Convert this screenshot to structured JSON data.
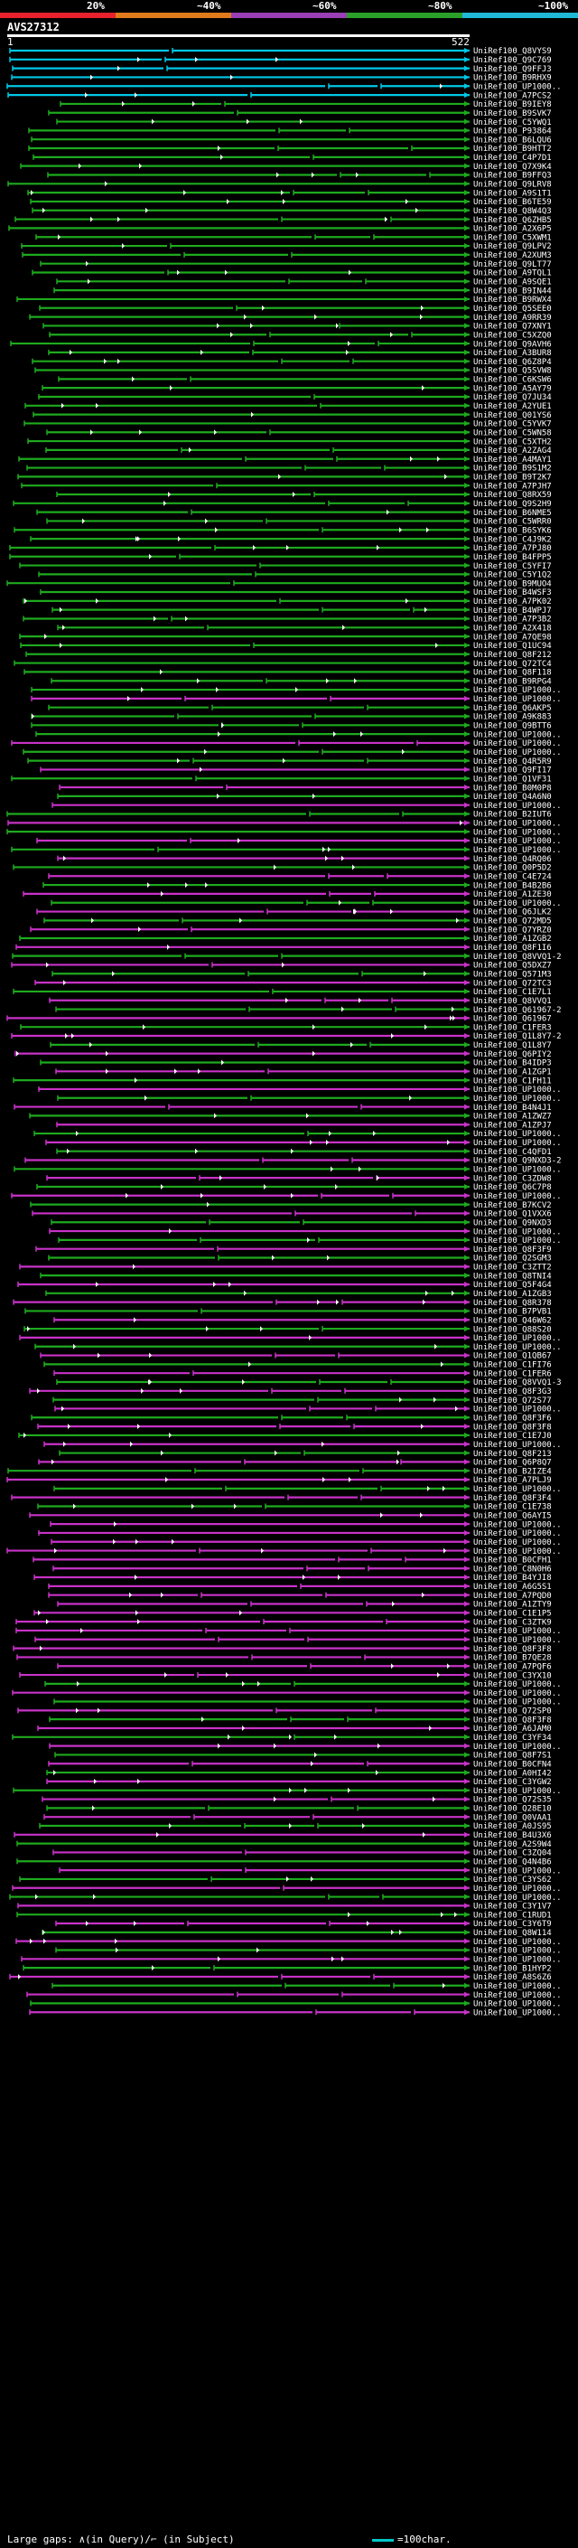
{
  "identity_scale": {
    "labels": [
      "20%",
      "~40%",
      "~60%",
      "~80%",
      "~100%"
    ],
    "colors": [
      "#e8212d",
      "#e07a1a",
      "#9a3fb5",
      "#2aa02a",
      "#1fb8d8"
    ]
  },
  "query": {
    "id": "AVS27312",
    "start": "1",
    "end": "522"
  },
  "hits": [
    {
      "id": "UniRef100_Q8VYS9",
      "color": "#00c8e6"
    },
    {
      "id": "UniRef100_Q9C769",
      "color": "#00c8e6"
    },
    {
      "id": "UniRef100_Q9FFJ3",
      "color": "#00c8e6"
    },
    {
      "id": "UniRef100_B9RHX9",
      "color": "#00c8e6"
    },
    {
      "id": "UniRef100_UP1000..",
      "color": "#00c8e6"
    },
    {
      "id": "UniRef100_A7PCS2",
      "color": "#00c8e6"
    },
    {
      "id": "UniRef100_B9IEY8",
      "color": "#1eaa1e"
    },
    {
      "id": "UniRef100_B9SVK7",
      "color": "#1eaa1e"
    },
    {
      "id": "UniRef100_C5YWQ1",
      "color": "#1eaa1e"
    },
    {
      "id": "UniRef100_P93864",
      "color": "#1eaa1e"
    },
    {
      "id": "UniRef100_B6LQU6",
      "color": "#1eaa1e"
    },
    {
      "id": "UniRef100_B9HTT2",
      "color": "#1eaa1e"
    },
    {
      "id": "UniRef100_C4P7D1",
      "color": "#1eaa1e"
    },
    {
      "id": "UniRef100_Q7X9K4",
      "color": "#1eaa1e"
    },
    {
      "id": "UniRef100_B9FFQ3",
      "color": "#1eaa1e"
    },
    {
      "id": "UniRef100_Q9LRV8",
      "color": "#1eaa1e"
    },
    {
      "id": "UniRef100_A9S1T1",
      "color": "#1eaa1e"
    },
    {
      "id": "UniRef100_B6TE59",
      "color": "#1eaa1e"
    },
    {
      "id": "UniRef100_Q8W4Q3",
      "color": "#1eaa1e"
    },
    {
      "id": "UniRef100_Q6ZHB5",
      "color": "#1eaa1e"
    },
    {
      "id": "UniRef100_A2X6P5",
      "color": "#1eaa1e"
    },
    {
      "id": "UniRef100_C5XWM1",
      "color": "#1eaa1e"
    },
    {
      "id": "UniRef100_Q9LPV2",
      "color": "#1eaa1e"
    },
    {
      "id": "UniRef100_A2XUM3",
      "color": "#1eaa1e"
    },
    {
      "id": "UniRef100_Q9LT77",
      "color": "#1eaa1e"
    },
    {
      "id": "UniRef100_A9TQL1",
      "color": "#1eaa1e"
    },
    {
      "id": "UniRef100_A9SQE1",
      "color": "#1eaa1e"
    },
    {
      "id": "UniRef100_B9IN44",
      "color": "#1eaa1e"
    },
    {
      "id": "UniRef100_B9RWX4",
      "color": "#1eaa1e"
    },
    {
      "id": "UniRef100_Q5SEE0",
      "color": "#1eaa1e"
    },
    {
      "id": "UniRef100_A9RR39",
      "color": "#1eaa1e"
    },
    {
      "id": "UniRef100_Q7XNY1",
      "color": "#1eaa1e"
    },
    {
      "id": "UniRef100_C5XZQ0",
      "color": "#1eaa1e"
    },
    {
      "id": "UniRef100_Q9AVH6",
      "color": "#1eaa1e"
    },
    {
      "id": "UniRef100_A3BUR8",
      "color": "#1eaa1e"
    },
    {
      "id": "UniRef100_Q6Z8P4",
      "color": "#1eaa1e"
    },
    {
      "id": "UniRef100_Q5SVW8",
      "color": "#1eaa1e"
    },
    {
      "id": "UniRef100_C6KSW6",
      "color": "#1eaa1e"
    },
    {
      "id": "UniRef100_A5AY79",
      "color": "#1eaa1e"
    },
    {
      "id": "UniRef100_Q7JU34",
      "color": "#1eaa1e"
    },
    {
      "id": "UniRef100_A2YUE1",
      "color": "#1eaa1e"
    },
    {
      "id": "UniRef100_Q01YS6",
      "color": "#1eaa1e"
    },
    {
      "id": "UniRef100_C5YVK7",
      "color": "#1eaa1e"
    },
    {
      "id": "UniRef100_C5WN58",
      "color": "#1eaa1e"
    },
    {
      "id": "UniRef100_C5XTH2",
      "color": "#1eaa1e"
    },
    {
      "id": "UniRef100_A2ZAG4",
      "color": "#1eaa1e"
    },
    {
      "id": "UniRef100_A4MAY1",
      "color": "#1eaa1e"
    },
    {
      "id": "UniRef100_B9S1M2",
      "color": "#1eaa1e"
    },
    {
      "id": "UniRef100_B9T2K7",
      "color": "#1eaa1e"
    },
    {
      "id": "UniRef100_A7PJH7",
      "color": "#1eaa1e"
    },
    {
      "id": "UniRef100_Q8RX59",
      "color": "#1eaa1e"
    },
    {
      "id": "UniRef100_Q9S2H9",
      "color": "#1eaa1e"
    },
    {
      "id": "UniRef100_B6NME5",
      "color": "#1eaa1e"
    },
    {
      "id": "UniRef100_C5WRR0",
      "color": "#1eaa1e"
    },
    {
      "id": "UniRef100_B6SYK6",
      "color": "#1eaa1e"
    },
    {
      "id": "UniRef100_C4J9K2",
      "color": "#1eaa1e"
    },
    {
      "id": "UniRef100_A7PJ80",
      "color": "#1eaa1e"
    },
    {
      "id": "UniRef100_B4FPP5",
      "color": "#1eaa1e"
    },
    {
      "id": "UniRef100_C5YFI7",
      "color": "#1eaa1e"
    },
    {
      "id": "UniRef100_C5Y1Q2",
      "color": "#1eaa1e"
    },
    {
      "id": "UniRef100_B9MUO4",
      "color": "#1eaa1e"
    },
    {
      "id": "UniRef100_B4WSF3",
      "color": "#1eaa1e"
    },
    {
      "id": "UniRef100_A7PK02",
      "color": "#1eaa1e"
    },
    {
      "id": "UniRef100_B4WPJ7",
      "color": "#1eaa1e"
    },
    {
      "id": "UniRef100_A7P3B2",
      "color": "#1eaa1e"
    },
    {
      "id": "UniRef100_A2X418",
      "color": "#1eaa1e"
    },
    {
      "id": "UniRef100_A7QE98",
      "color": "#1eaa1e"
    },
    {
      "id": "UniRef100_Q1UC94",
      "color": "#1eaa1e"
    },
    {
      "id": "UniRef100_Q8F212",
      "color": "#1eaa1e"
    },
    {
      "id": "UniRef100_Q72TC4",
      "color": "#1eaa1e"
    },
    {
      "id": "UniRef100_Q8F118",
      "color": "#1eaa1e"
    },
    {
      "id": "UniRef100_B9RPG4",
      "color": "#1eaa1e"
    },
    {
      "id": "UniRef100_UP1000..",
      "color": "#1eaa1e"
    },
    {
      "id": "UniRef100_UP1000..",
      "color": "#c832c8"
    },
    {
      "id": "UniRef100_Q6AKP5",
      "color": "#1eaa1e"
    },
    {
      "id": "UniRef100_A9K883",
      "color": "#1eaa1e"
    },
    {
      "id": "UniRef100_Q9BTT6",
      "color": "#1eaa1e"
    },
    {
      "id": "UniRef100_UP1000..",
      "color": "#1eaa1e"
    },
    {
      "id": "UniRef100_UP1000..",
      "color": "#c832c8"
    },
    {
      "id": "UniRef100_UP1000..",
      "color": "#1eaa1e"
    },
    {
      "id": "UniRef100_Q4R5R9",
      "color": "#1eaa1e"
    },
    {
      "id": "UniRef100_Q9FI17",
      "color": "#c832c8"
    },
    {
      "id": "UniRef100_Q1VF31",
      "color": "#1eaa1e"
    },
    {
      "id": "UniRef100_B0M0P8",
      "color": "#c832c8"
    },
    {
      "id": "UniRef100_Q4A6N0",
      "color": "#1eaa1e"
    },
    {
      "id": "UniRef100_UP1000..",
      "color": "#c832c8"
    },
    {
      "id": "UniRef100_B2IUT6",
      "color": "#1eaa1e"
    },
    {
      "id": "UniRef100_UP1000..",
      "color": "#c832c8"
    },
    {
      "id": "UniRef100_UP1000..",
      "color": "#1eaa1e"
    },
    {
      "id": "UniRef100_UP1000..",
      "color": "#c832c8"
    },
    {
      "id": "UniRef100_UP1000..",
      "color": "#1eaa1e"
    },
    {
      "id": "UniRef100_Q4RQ06",
      "color": "#c832c8"
    },
    {
      "id": "UniRef100_Q0P5D2",
      "color": "#1eaa1e"
    },
    {
      "id": "UniRef100_C4E724",
      "color": "#c832c8"
    },
    {
      "id": "UniRef100_B4B2B6",
      "color": "#1eaa1e"
    },
    {
      "id": "UniRef100_A1ZE30",
      "color": "#c832c8"
    },
    {
      "id": "UniRef100_UP1000..",
      "color": "#1eaa1e"
    },
    {
      "id": "UniRef100_Q6JLK2",
      "color": "#c832c8"
    },
    {
      "id": "UniRef100_Q72MD5",
      "color": "#1eaa1e"
    },
    {
      "id": "UniRef100_Q7YRZ0",
      "color": "#c832c8"
    },
    {
      "id": "UniRef100_A1ZGB2",
      "color": "#1eaa1e"
    },
    {
      "id": "UniRef100_Q8F1I6",
      "color": "#c832c8"
    },
    {
      "id": "UniRef100_Q8VVQ1-2",
      "color": "#1eaa1e"
    },
    {
      "id": "UniRef100_Q5DXZ7",
      "color": "#c832c8"
    },
    {
      "id": "UniRef100_Q571M3",
      "color": "#1eaa1e"
    },
    {
      "id": "UniRef100_Q72TC3",
      "color": "#c832c8"
    },
    {
      "id": "UniRef100_C1E7L1",
      "color": "#1eaa1e"
    },
    {
      "id": "UniRef100_Q8VVQ1",
      "color": "#c832c8"
    },
    {
      "id": "UniRef100_Q61967-2",
      "color": "#1eaa1e"
    },
    {
      "id": "UniRef100_Q61967",
      "color": "#c832c8"
    },
    {
      "id": "UniRef100_C1FER3",
      "color": "#1eaa1e"
    },
    {
      "id": "UniRef100_Q1L8Y7-2",
      "color": "#c832c8"
    },
    {
      "id": "UniRef100_Q1L8Y7",
      "color": "#1eaa1e"
    },
    {
      "id": "UniRef100_Q6PIY2",
      "color": "#c832c8"
    },
    {
      "id": "UniRef100_B4IDP3",
      "color": "#1eaa1e"
    },
    {
      "id": "UniRef100_A1ZGP1",
      "color": "#c832c8"
    },
    {
      "id": "UniRef100_C1FH11",
      "color": "#1eaa1e"
    },
    {
      "id": "UniRef100_UP1000..",
      "color": "#c832c8"
    },
    {
      "id": "UniRef100_UP1000..",
      "color": "#1eaa1e"
    },
    {
      "id": "UniRef100_B4N4J1",
      "color": "#c832c8"
    },
    {
      "id": "UniRef100_A1ZWZ7",
      "color": "#1eaa1e"
    },
    {
      "id": "UniRef100_A1ZPJ7",
      "color": "#c832c8"
    },
    {
      "id": "UniRef100_UP1000..",
      "color": "#1eaa1e"
    },
    {
      "id": "UniRef100_UP1000..",
      "color": "#c832c8"
    },
    {
      "id": "UniRef100_C4QFD1",
      "color": "#1eaa1e"
    },
    {
      "id": "UniRef100_Q9NXD3-2",
      "color": "#c832c8"
    },
    {
      "id": "UniRef100_UP1000..",
      "color": "#1eaa1e"
    },
    {
      "id": "UniRef100_C3ZDW8",
      "color": "#c832c8"
    },
    {
      "id": "UniRef100_Q6C7P8",
      "color": "#1eaa1e"
    },
    {
      "id": "UniRef100_UP1000..",
      "color": "#c832c8"
    },
    {
      "id": "UniRef100_B7KCV2",
      "color": "#1eaa1e"
    },
    {
      "id": "UniRef100_Q1VXX6",
      "color": "#c832c8"
    },
    {
      "id": "UniRef100_Q9NXD3",
      "color": "#1eaa1e"
    },
    {
      "id": "UniRef100_UP1000..",
      "color": "#c832c8"
    },
    {
      "id": "UniRef100_UP1000..",
      "color": "#1eaa1e"
    },
    {
      "id": "UniRef100_Q8F3F9",
      "color": "#c832c8"
    },
    {
      "id": "UniRef100_Q2SGM3",
      "color": "#1eaa1e"
    },
    {
      "id": "UniRef100_C3ZTT2",
      "color": "#c832c8"
    },
    {
      "id": "UniRef100_Q8TNI4",
      "color": "#1eaa1e"
    },
    {
      "id": "UniRef100_Q5F4G4",
      "color": "#c832c8"
    },
    {
      "id": "UniRef100_A1ZGB3",
      "color": "#1eaa1e"
    },
    {
      "id": "UniRef100_Q8R378",
      "color": "#c832c8"
    },
    {
      "id": "UniRef100_B7PVB1",
      "color": "#1eaa1e"
    },
    {
      "id": "UniRef100_Q46W62",
      "color": "#c832c8"
    },
    {
      "id": "UniRef100_Q88S20",
      "color": "#1eaa1e"
    },
    {
      "id": "UniRef100_UP1000..",
      "color": "#c832c8"
    },
    {
      "id": "UniRef100_UP1000..",
      "color": "#1eaa1e"
    },
    {
      "id": "UniRef100_Q1QB67",
      "color": "#c832c8"
    },
    {
      "id": "UniRef100_C1FI76",
      "color": "#1eaa1e"
    },
    {
      "id": "UniRef100_C1FER6",
      "color": "#c832c8"
    },
    {
      "id": "UniRef100_Q8VVQ1-3",
      "color": "#1eaa1e"
    },
    {
      "id": "UniRef100_Q8F3G3",
      "color": "#c832c8"
    },
    {
      "id": "UniRef100_Q72S77",
      "color": "#1eaa1e"
    },
    {
      "id": "UniRef100_UP1000..",
      "color": "#c832c8"
    },
    {
      "id": "UniRef100_Q8F3F6",
      "color": "#1eaa1e"
    },
    {
      "id": "UniRef100_Q8F3F8",
      "color": "#c832c8"
    },
    {
      "id": "UniRef100_C1E7J0",
      "color": "#1eaa1e"
    },
    {
      "id": "UniRef100_UP1000..",
      "color": "#c832c8"
    },
    {
      "id": "UniRef100_Q8F213",
      "color": "#1eaa1e"
    },
    {
      "id": "UniRef100_Q6P8Q7",
      "color": "#c832c8"
    },
    {
      "id": "UniRef100_B2IZE4",
      "color": "#1eaa1e"
    },
    {
      "id": "UniRef100_A7PLJ9",
      "color": "#c832c8"
    },
    {
      "id": "UniRef100_UP1000..",
      "color": "#1eaa1e"
    },
    {
      "id": "UniRef100_Q8F3F4",
      "color": "#c832c8"
    },
    {
      "id": "UniRef100_C1E738",
      "color": "#1eaa1e"
    },
    {
      "id": "UniRef100_Q6AYI5",
      "color": "#c832c8"
    },
    {
      "id": "UniRef100_UP1000..",
      "color": "#c832c8"
    },
    {
      "id": "UniRef100_UP1000..",
      "color": "#c832c8"
    },
    {
      "id": "UniRef100_UP1000..",
      "color": "#c832c8"
    },
    {
      "id": "UniRef100_UP1000..",
      "color": "#c832c8"
    },
    {
      "id": "UniRef100_B0CFH1",
      "color": "#c832c8"
    },
    {
      "id": "UniRef100_C8N0H6",
      "color": "#c832c8"
    },
    {
      "id": "UniRef100_B4YJI8",
      "color": "#c832c8"
    },
    {
      "id": "UniRef100_A6G5S1",
      "color": "#c832c8"
    },
    {
      "id": "UniRef100_A7PQD0",
      "color": "#c832c8"
    },
    {
      "id": "UniRef100_A1ZTY9",
      "color": "#c832c8"
    },
    {
      "id": "UniRef100_C1E1P5",
      "color": "#c832c8"
    },
    {
      "id": "UniRef100_C3ZTK9",
      "color": "#c832c8"
    },
    {
      "id": "UniRef100_UP1000..",
      "color": "#c832c8"
    },
    {
      "id": "UniRef100_UP1000..",
      "color": "#c832c8"
    },
    {
      "id": "UniRef100_Q8F3F8",
      "color": "#c832c8"
    },
    {
      "id": "UniRef100_B7QE28",
      "color": "#c832c8"
    },
    {
      "id": "UniRef100_A7PQF6",
      "color": "#c832c8"
    },
    {
      "id": "UniRef100_C3YX10",
      "color": "#c832c8"
    },
    {
      "id": "UniRef100_UP1000..",
      "color": "#1eaa1e"
    },
    {
      "id": "UniRef100_UP1000..",
      "color": "#c832c8"
    },
    {
      "id": "UniRef100_UP1000..",
      "color": "#1eaa1e"
    },
    {
      "id": "UniRef100_Q72SP0",
      "color": "#c832c8"
    },
    {
      "id": "UniRef100_Q8F3F8",
      "color": "#1eaa1e"
    },
    {
      "id": "UniRef100_A6JAM0",
      "color": "#c832c8"
    },
    {
      "id": "UniRef100_C3YF34",
      "color": "#1eaa1e"
    },
    {
      "id": "UniRef100_UP1000..",
      "color": "#c832c8"
    },
    {
      "id": "UniRef100_Q8F7S1",
      "color": "#1eaa1e"
    },
    {
      "id": "UniRef100_B0CFN4",
      "color": "#c832c8"
    },
    {
      "id": "UniRef100_A0HI42",
      "color": "#1eaa1e"
    },
    {
      "id": "UniRef100_C3YGW2",
      "color": "#c832c8"
    },
    {
      "id": "UniRef100_UP1000..",
      "color": "#1eaa1e"
    },
    {
      "id": "UniRef100_Q72S35",
      "color": "#c832c8"
    },
    {
      "id": "UniRef100_Q28E10",
      "color": "#1eaa1e"
    },
    {
      "id": "UniRef100_Q0VAA1",
      "color": "#c832c8"
    },
    {
      "id": "UniRef100_A0JS95",
      "color": "#1eaa1e"
    },
    {
      "id": "UniRef100_B4U3X6",
      "color": "#c832c8"
    },
    {
      "id": "UniRef100_A2S9W4",
      "color": "#1eaa1e"
    },
    {
      "id": "UniRef100_C3ZQ04",
      "color": "#c832c8"
    },
    {
      "id": "UniRef100_Q4N4B6",
      "color": "#1eaa1e"
    },
    {
      "id": "UniRef100_UP1000..",
      "color": "#c832c8"
    },
    {
      "id": "UniRef100_C3YS62",
      "color": "#1eaa1e"
    },
    {
      "id": "UniRef100_UP1000..",
      "color": "#c832c8"
    },
    {
      "id": "UniRef100_UP1000..",
      "color": "#1eaa1e"
    },
    {
      "id": "UniRef100_C3Y1V7",
      "color": "#c832c8"
    },
    {
      "id": "UniRef100_C1RUD1",
      "color": "#1eaa1e"
    },
    {
      "id": "UniRef100_C3Y6T9",
      "color": "#c832c8"
    },
    {
      "id": "UniRef100_Q8W114",
      "color": "#1eaa1e"
    },
    {
      "id": "UniRef100_UP1000..",
      "color": "#c832c8"
    },
    {
      "id": "UniRef100_UP1000..",
      "color": "#1eaa1e"
    },
    {
      "id": "UniRef100_UP1000..",
      "color": "#c832c8"
    },
    {
      "id": "UniRef100_B1HYP2",
      "color": "#1eaa1e"
    },
    {
      "id": "UniRef100_A8S6Z6",
      "color": "#c832c8"
    },
    {
      "id": "UniRef100_UP1000..",
      "color": "#1eaa1e"
    },
    {
      "id": "UniRef100_UP1000..",
      "color": "#c832c8"
    },
    {
      "id": "UniRef100_UP1000..",
      "color": "#1eaa1e"
    },
    {
      "id": "UniRef100_UP1000..",
      "color": "#c832c8"
    }
  ],
  "footer": {
    "gaps_text": "Large gaps: ∧(in Query)/⌐ (in Subject)",
    "scale_text": "=100char."
  }
}
